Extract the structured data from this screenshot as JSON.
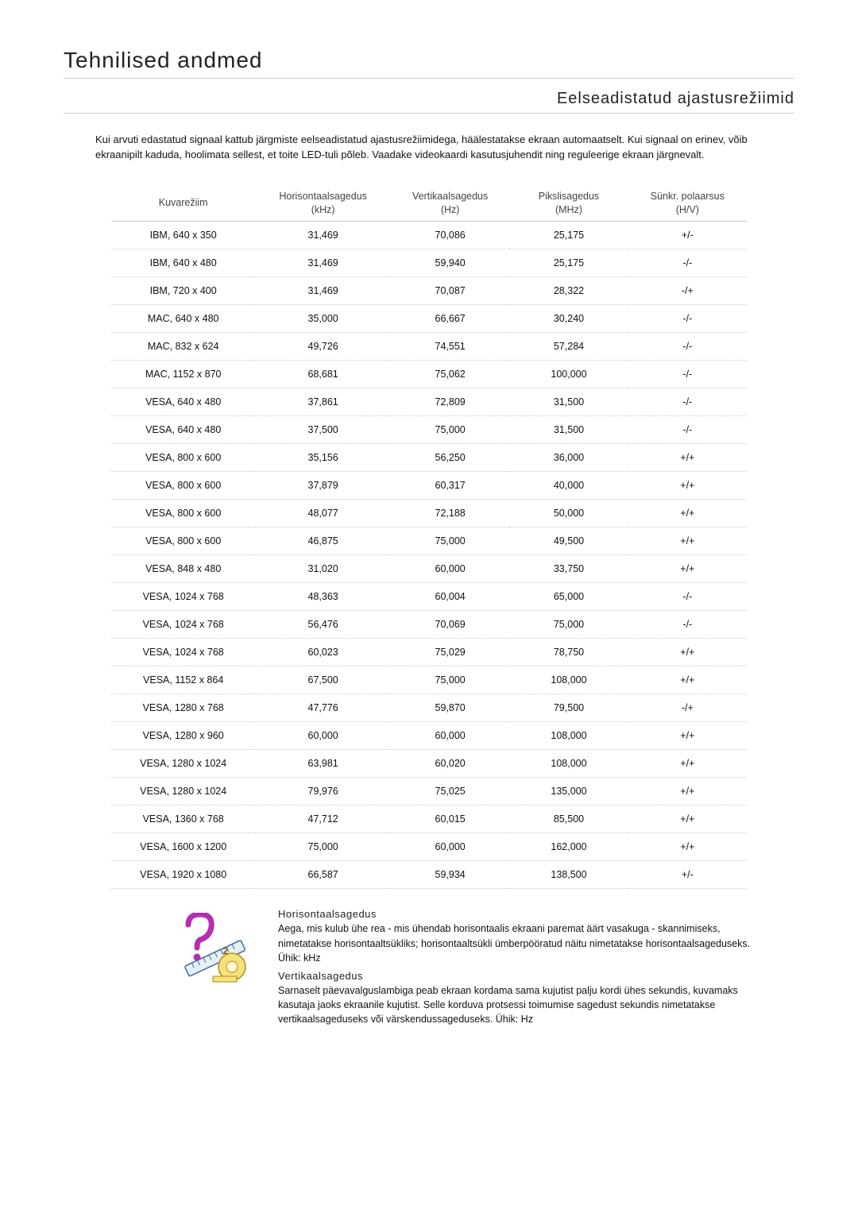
{
  "page_title": "Tehnilised andmed",
  "section_title": "Eelseadistatud ajastusrežiimid",
  "intro_text": "Kui arvuti edastatud signaal kattub järgmiste eelseadistatud ajastusrežiimidega, häälestatakse ekraan automaatselt. Kui signaal on erinev, võib ekraanipilt kaduda, hoolimata sellest, et toite LED-tuli põleb. Vaadake videokaardi kasutusjuhendit ning reguleerige ekraan järgnevalt.",
  "table": {
    "columns": [
      {
        "line1": "Kuvarežiim",
        "line2": ""
      },
      {
        "line1": "Horisontaalsagedus",
        "line2": "(kHz)"
      },
      {
        "line1": "Vertikaalsagedus",
        "line2": "(Hz)"
      },
      {
        "line1": "Pikslisagedus",
        "line2": "(MHz)"
      },
      {
        "line1": "Sünkr. polaarsus",
        "line2": "(H/V)"
      }
    ],
    "rows": [
      [
        "IBM, 640 x 350",
        "31,469",
        "70,086",
        "25,175",
        "+/-"
      ],
      [
        "IBM, 640 x 480",
        "31,469",
        "59,940",
        "25,175",
        "-/-"
      ],
      [
        "IBM, 720 x 400",
        "31,469",
        "70,087",
        "28,322",
        "-/+"
      ],
      [
        "MAC, 640 x 480",
        "35,000",
        "66,667",
        "30,240",
        "-/-"
      ],
      [
        "MAC, 832 x 624",
        "49,726",
        "74,551",
        "57,284",
        "-/-"
      ],
      [
        "MAC, 1152 x 870",
        "68,681",
        "75,062",
        "100,000",
        "-/-"
      ],
      [
        "VESA, 640 x 480",
        "37,861",
        "72,809",
        "31,500",
        "-/-"
      ],
      [
        "VESA, 640 x 480",
        "37,500",
        "75,000",
        "31,500",
        "-/-"
      ],
      [
        "VESA, 800 x 600",
        "35,156",
        "56,250",
        "36,000",
        "+/+"
      ],
      [
        "VESA, 800 x 600",
        "37,879",
        "60,317",
        "40,000",
        "+/+"
      ],
      [
        "VESA, 800 x 600",
        "48,077",
        "72,188",
        "50,000",
        "+/+"
      ],
      [
        "VESA, 800 x 600",
        "46,875",
        "75,000",
        "49,500",
        "+/+"
      ],
      [
        "VESA, 848 x 480",
        "31,020",
        "60,000",
        "33,750",
        "+/+"
      ],
      [
        "VESA, 1024 x 768",
        "48,363",
        "60,004",
        "65,000",
        "-/-"
      ],
      [
        "VESA, 1024 x 768",
        "56,476",
        "70,069",
        "75,000",
        "-/-"
      ],
      [
        "VESA, 1024 x 768",
        "60,023",
        "75,029",
        "78,750",
        "+/+"
      ],
      [
        "VESA, 1152 x 864",
        "67,500",
        "75,000",
        "108,000",
        "+/+"
      ],
      [
        "VESA, 1280 x 768",
        "47,776",
        "59,870",
        "79,500",
        "-/+"
      ],
      [
        "VESA, 1280 x 960",
        "60,000",
        "60,000",
        "108,000",
        "+/+"
      ],
      [
        "VESA, 1280 x 1024",
        "63,981",
        "60,020",
        "108,000",
        "+/+"
      ],
      [
        "VESA, 1280 x 1024",
        "79,976",
        "75,025",
        "135,000",
        "+/+"
      ],
      [
        "VESA, 1360 x 768",
        "47,712",
        "60,015",
        "85,500",
        "+/+"
      ],
      [
        "VESA, 1600 x 1200",
        "75,000",
        "60,000",
        "162,000",
        "+/+"
      ],
      [
        "VESA, 1920 x 1080",
        "66,587",
        "59,934",
        "138,500",
        "+/-"
      ]
    ]
  },
  "definitions": {
    "h_title": "Horisontaalsagedus",
    "h_body": "Aega, mis kulub ühe rea - mis ühendab horisontaalis ekraani paremat äärt vasakuga - skannimiseks, nimetatakse horisontaaltsükliks; horisontaaltsükli ümberpööratud näitu nimetatakse horisontaalsageduseks. Ühik: kHz",
    "v_title": "Vertikaalsagedus",
    "v_body": "Sarnaselt päevavalguslambiga peab ekraan kordama sama kujutist palju kordi ühes sekundis, kuvamaks kasutaja jaoks ekraanile kujutist. Selle korduva protsessi toimumise sagedust sekundis nimetatakse vertikaalsageduseks või värskendussageduseks. Ühik: Hz"
  },
  "styling": {
    "body_font": "Arial",
    "page_title_fontsize": 28,
    "section_title_fontsize": 20,
    "body_fontsize": 13,
    "table_fontsize": 12.5,
    "border_color": "#cccccc",
    "text_color": "#111111",
    "heading_color": "#222222",
    "background_color": "#ffffff",
    "icon_question_color": "#b22fb2",
    "icon_ruler_color": "#3a6b9a",
    "icon_tape_color": "#f4e27a",
    "icon_tape_stroke": "#b08c20"
  }
}
